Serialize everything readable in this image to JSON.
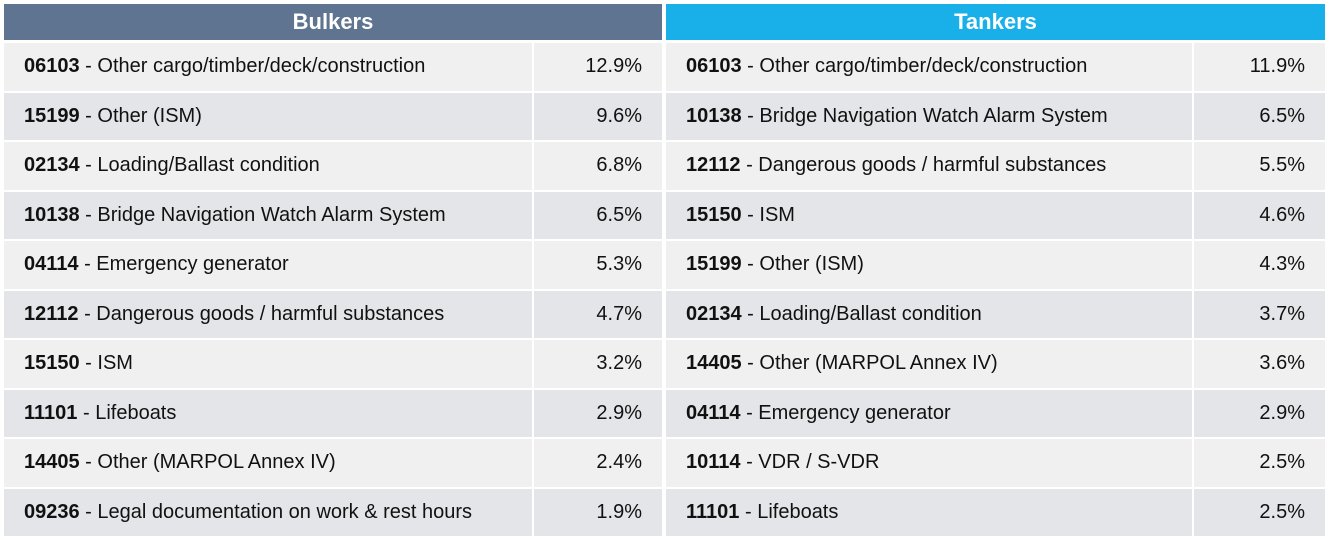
{
  "bulkers": {
    "title": "Bulkers",
    "header_color": "#5e7491",
    "rows": [
      {
        "code": "06103",
        "desc": " - Other cargo/timber/deck/construction",
        "pct": "12.9%"
      },
      {
        "code": "15199",
        "desc": " - Other (ISM)",
        "pct": "9.6%"
      },
      {
        "code": "02134",
        "desc": " - Loading/Ballast condition",
        "pct": "6.8%"
      },
      {
        "code": "10138",
        "desc": " - Bridge Navigation Watch Alarm System",
        "pct": "6.5%"
      },
      {
        "code": "04114",
        "desc": " - Emergency generator",
        "pct": "5.3%"
      },
      {
        "code": "12112",
        "desc": " - Dangerous goods / harmful substances",
        "pct": "4.7%"
      },
      {
        "code": "15150",
        "desc": " - ISM",
        "pct": "3.2%"
      },
      {
        "code": "11101",
        "desc": " - Lifeboats",
        "pct": "2.9%"
      },
      {
        "code": "14405",
        "desc": " - Other (MARPOL Annex IV)",
        "pct": "2.4%"
      },
      {
        "code": "09236",
        "desc": " - Legal documentation on work & rest hours",
        "pct": "1.9%"
      }
    ]
  },
  "tankers": {
    "title": "Tankers",
    "header_color": "#19b0ea",
    "rows": [
      {
        "code": "06103",
        "desc": " - Other cargo/timber/deck/construction",
        "pct": "11.9%"
      },
      {
        "code": "10138",
        "desc": " - Bridge Navigation Watch Alarm System",
        "pct": "6.5%"
      },
      {
        "code": "12112",
        "desc": " - Dangerous goods / harmful substances",
        "pct": "5.5%"
      },
      {
        "code": "15150",
        "desc": " - ISM",
        "pct": "4.6%"
      },
      {
        "code": "15199",
        "desc": " - Other (ISM)",
        "pct": "4.3%"
      },
      {
        "code": "02134",
        "desc": " - Loading/Ballast condition",
        "pct": "3.7%"
      },
      {
        "code": "14405",
        "desc": " - Other (MARPOL Annex IV)",
        "pct": "3.6%"
      },
      {
        "code": "04114",
        "desc": " - Emergency generator",
        "pct": "2.9%"
      },
      {
        "code": "10114",
        "desc": " - VDR / S-VDR",
        "pct": "2.5%"
      },
      {
        "code": "11101",
        "desc": " - Lifeboats",
        "pct": "2.5%"
      }
    ]
  }
}
